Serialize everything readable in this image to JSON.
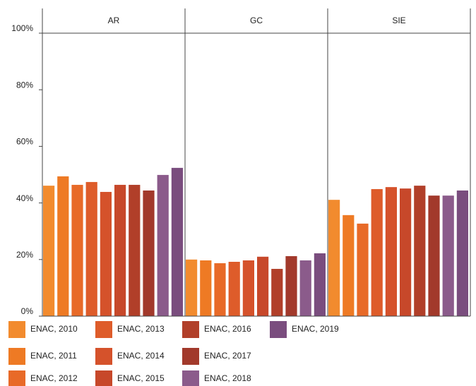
{
  "chart_data": {
    "type": "bar",
    "categories": [
      "AR",
      "GC",
      "SIE"
    ],
    "ylim": [
      0,
      100
    ],
    "yticks": [
      {
        "value": 0,
        "label": "0%"
      },
      {
        "value": 20,
        "label": "20%"
      },
      {
        "value": 40,
        "label": "40%"
      },
      {
        "value": 60,
        "label": "60%"
      },
      {
        "value": 80,
        "label": "80%"
      },
      {
        "value": 100,
        "label": "100%"
      }
    ],
    "series": [
      {
        "name": "ENAC, 2010",
        "color": "#f28b2e",
        "values": [
          46.1,
          20.0,
          41.1
        ]
      },
      {
        "name": "ENAC, 2011",
        "color": "#ee7a24",
        "values": [
          49.4,
          19.7,
          35.7
        ]
      },
      {
        "name": "ENAC, 2012",
        "color": "#e86a28",
        "values": [
          46.4,
          18.7,
          32.7
        ]
      },
      {
        "name": "ENAC, 2013",
        "color": "#de5c2a",
        "values": [
          47.4,
          19.2,
          44.9
        ]
      },
      {
        "name": "ENAC, 2014",
        "color": "#d5522b",
        "values": [
          43.9,
          19.7,
          45.6
        ]
      },
      {
        "name": "ENAC, 2015",
        "color": "#c7482a",
        "values": [
          46.4,
          21.0,
          45.1
        ]
      },
      {
        "name": "ENAC, 2016",
        "color": "#b13f29",
        "values": [
          46.4,
          16.7,
          46.1
        ]
      },
      {
        "name": "ENAC, 2017",
        "color": "#a2392b",
        "values": [
          44.4,
          21.2,
          42.6
        ]
      },
      {
        "name": "ENAC, 2018",
        "color": "#8b5b8b",
        "values": [
          49.9,
          19.7,
          42.6
        ]
      },
      {
        "name": "ENAC, 2019",
        "color": "#7a4d7e",
        "values": [
          52.4,
          22.2,
          44.4
        ]
      }
    ]
  }
}
